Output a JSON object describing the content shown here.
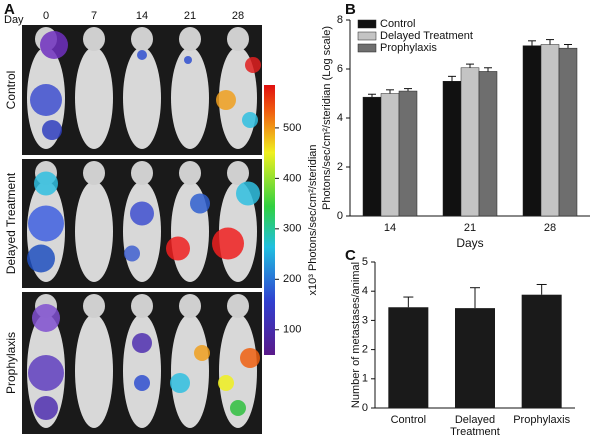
{
  "panel_a": {
    "label": "A",
    "day_label": "Day",
    "days": [
      0,
      7,
      14,
      21,
      28
    ],
    "rows": [
      "Control",
      "Delayed Treatment",
      "Prophylaxis"
    ],
    "colorbar": {
      "label": "x10³ Photons/sec/cm²/steridian",
      "lim": [
        50,
        585
      ],
      "ticks": [
        100,
        200,
        300,
        400,
        500
      ]
    }
  },
  "chart_data": [
    {
      "type": "bar",
      "panel": "B",
      "y_label": "Photons/sec/cm²/steridian (Log scale)",
      "x_label": "Days",
      "categories": [
        "14",
        "21",
        "28"
      ],
      "series": [
        {
          "name": "Control",
          "color": "#111111",
          "values": [
            4.85,
            5.5,
            6.95
          ],
          "errors": [
            0.12,
            0.2,
            0.2
          ]
        },
        {
          "name": "Delayed Treatment",
          "color": "#c4c4c4",
          "values": [
            5.0,
            6.05,
            7.0
          ],
          "errors": [
            0.15,
            0.15,
            0.2
          ]
        },
        {
          "name": "Prophylaxis",
          "color": "#6e6e6e",
          "values": [
            5.1,
            5.9,
            6.85
          ],
          "errors": [
            0.1,
            0.15,
            0.15
          ]
        }
      ],
      "ylim": [
        0,
        8
      ],
      "yticks": [
        0,
        2,
        4,
        6,
        8
      ],
      "legend": "top-left"
    },
    {
      "type": "bar",
      "panel": "C",
      "y_label": "Number of metastases/animal",
      "categories": [
        "Control",
        "Delayed Treatment",
        "Prophylaxis"
      ],
      "values": [
        3.45,
        3.42,
        3.88
      ],
      "errors": [
        0.35,
        0.7,
        0.35
      ],
      "color": "#1a1a1a",
      "ylim": [
        0,
        5
      ],
      "yticks": [
        0,
        1,
        2,
        3,
        4,
        5
      ]
    }
  ]
}
